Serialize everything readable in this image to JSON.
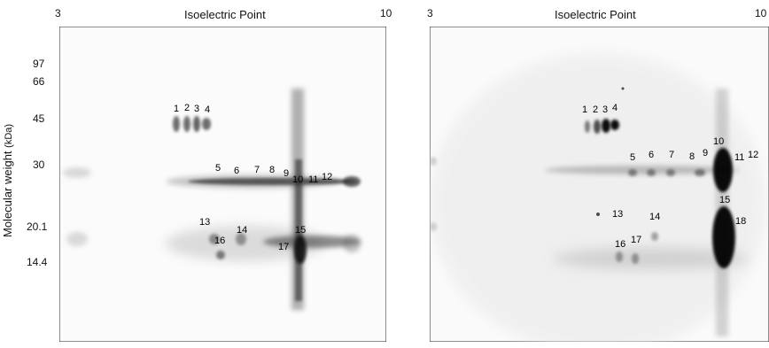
{
  "left_panel": {
    "ph_min": "3",
    "ph_max": "10",
    "x_axis_title": "Isoelectric Point",
    "y_axis_title": "Molecular weight",
    "y_axis_unit": "(kDa)",
    "mw_markers": [
      "97",
      "66",
      "45",
      "30",
      "20.1",
      "14.4"
    ],
    "spots": [
      "1",
      "2",
      "3",
      "4",
      "5",
      "6",
      "7",
      "8",
      "9",
      "10",
      "11",
      "12",
      "13",
      "14",
      "15",
      "16",
      "17"
    ]
  },
  "right_panel": {
    "ph_min": "3",
    "ph_max": "10",
    "x_axis_title": "Isoelectric Point",
    "spots": [
      "1",
      "2",
      "3",
      "4",
      "5",
      "6",
      "7",
      "8",
      "9",
      "10",
      "11",
      "12",
      "13",
      "14",
      "15",
      "16",
      "17",
      "18"
    ]
  }
}
